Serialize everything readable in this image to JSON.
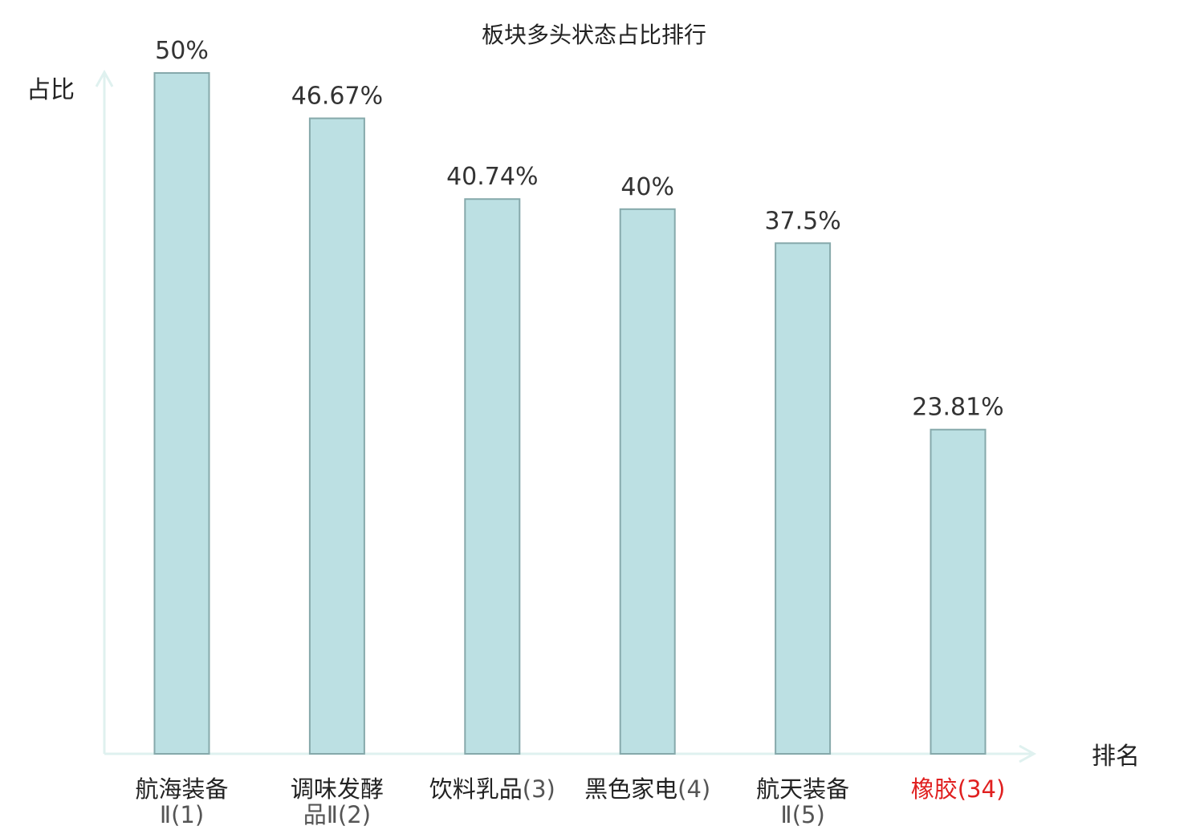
{
  "chart_data": {
    "type": "bar",
    "title": "板块多头状态占比排行",
    "ylabel": "占比",
    "xlabel": "排名",
    "ylim": [
      0,
      50
    ],
    "grid": false,
    "categories": [
      {
        "name_lines": [
          "航海装备"
        ],
        "rank_prefix": "Ⅱ",
        "rank": "(1)",
        "highlight": false
      },
      {
        "name_lines": [
          "调味发酵"
        ],
        "rank_prefix": "品Ⅱ",
        "rank": "(2)",
        "highlight": false
      },
      {
        "name_lines": [
          "饮料乳品"
        ],
        "rank_prefix": "",
        "rank": "(3)",
        "highlight": false
      },
      {
        "name_lines": [
          "黑色家电"
        ],
        "rank_prefix": "",
        "rank": "(4)",
        "highlight": false
      },
      {
        "name_lines": [
          "航天装备"
        ],
        "rank_prefix": "Ⅱ",
        "rank": "(5)",
        "highlight": false
      },
      {
        "name_lines": [
          "橡胶"
        ],
        "rank_prefix": "",
        "rank": "(34)",
        "highlight": true
      }
    ],
    "values": [
      50,
      46.67,
      40.74,
      40,
      37.5,
      23.81
    ],
    "value_labels": [
      "50%",
      "46.67%",
      "40.74%",
      "40%",
      "37.5%",
      "23.81%"
    ],
    "colors": {
      "bar_fill": "#bce0e3",
      "bar_stroke": "#86a9ab",
      "axis": "#dff1ef",
      "highlight": "#e02020"
    }
  }
}
